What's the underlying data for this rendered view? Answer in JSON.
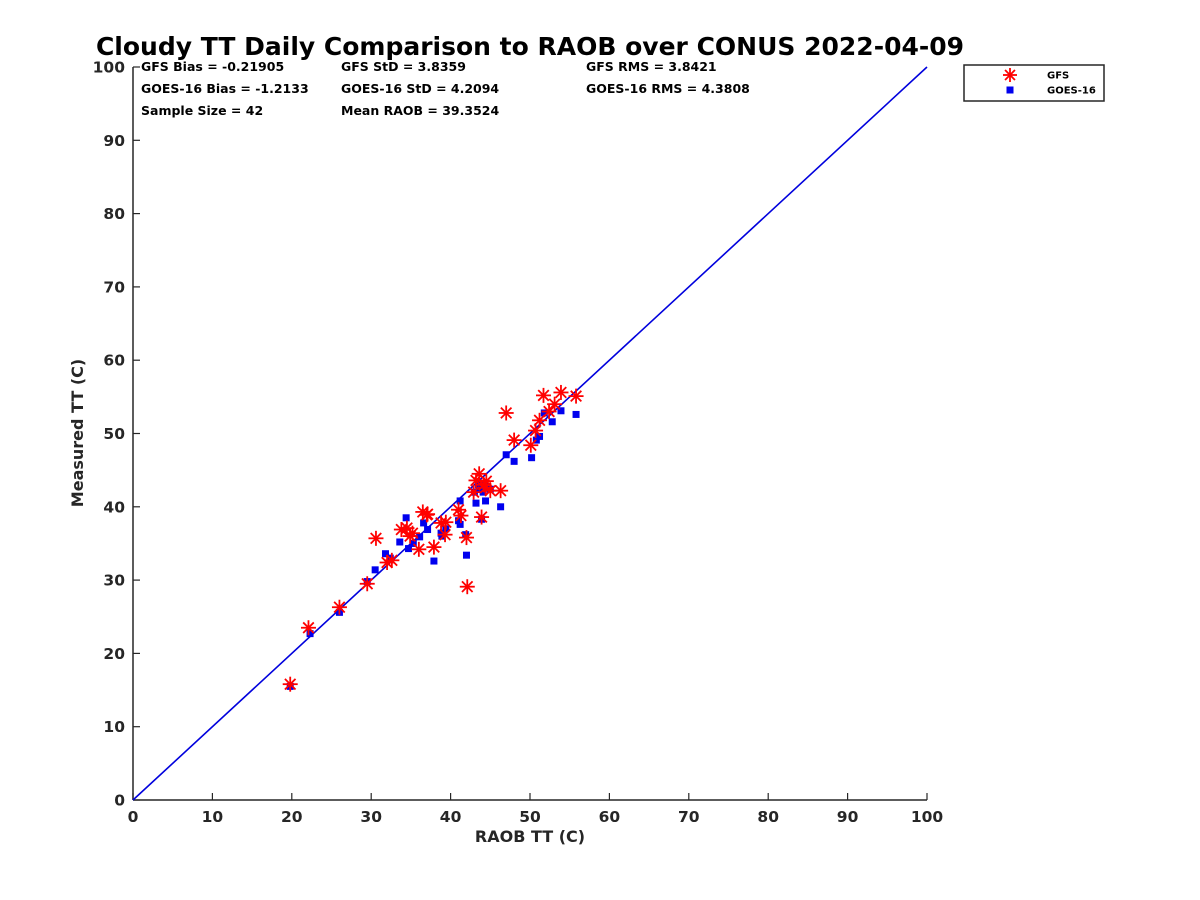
{
  "chart_data": {
    "type": "scatter",
    "title": "Cloudy TT Daily Comparison to RAOB over CONUS 2022-04-09",
    "xlabel": "RAOB TT (C)",
    "ylabel": "Measured TT (C)",
    "xlim": [
      0,
      100
    ],
    "ylim": [
      0,
      100
    ],
    "xticks": [
      "0",
      "10",
      "20",
      "30",
      "40",
      "50",
      "60",
      "70",
      "80",
      "90",
      "100"
    ],
    "yticks": [
      "0",
      "10",
      "20",
      "30",
      "40",
      "50",
      "60",
      "70",
      "80",
      "90",
      "100"
    ],
    "grid": false,
    "legend_position": "outside top-right",
    "reference_line": {
      "from": [
        0,
        0
      ],
      "to": [
        100,
        100
      ],
      "color": "#0000dd"
    },
    "stats": [
      [
        "GFS Bias = -0.21905",
        "GFS StD = 3.8359",
        "GFS RMS = 3.8421"
      ],
      [
        "GOES-16 Bias = -1.2133",
        "GOES-16 StD = 4.2094",
        "GOES-16 RMS = 4.3808"
      ],
      [
        "Sample Size = 42",
        "Mean RAOB = 39.3524",
        ""
      ]
    ],
    "series": [
      {
        "name": "GFS",
        "marker": "asterisk",
        "color": "#ff0000",
        "points": [
          [
            19.8,
            15.8
          ],
          [
            22.1,
            23.5
          ],
          [
            26.0,
            26.3
          ],
          [
            29.5,
            29.5
          ],
          [
            30.6,
            35.7
          ],
          [
            32.0,
            32.4
          ],
          [
            32.6,
            32.7
          ],
          [
            33.8,
            36.9
          ],
          [
            34.5,
            37.1
          ],
          [
            34.9,
            36.0
          ],
          [
            35.2,
            36.4
          ],
          [
            36.0,
            34.2
          ],
          [
            36.5,
            39.3
          ],
          [
            37.1,
            39.0
          ],
          [
            37.9,
            34.5
          ],
          [
            38.8,
            37.8
          ],
          [
            39.3,
            36.2
          ],
          [
            39.4,
            37.9
          ],
          [
            41.0,
            39.6
          ],
          [
            41.3,
            38.8
          ],
          [
            42.0,
            35.8
          ],
          [
            42.1,
            29.1
          ],
          [
            42.9,
            42.0
          ],
          [
            43.2,
            43.6
          ],
          [
            43.6,
            44.5
          ],
          [
            43.9,
            38.6
          ],
          [
            44.2,
            43.0
          ],
          [
            44.5,
            43.5
          ],
          [
            45.0,
            42.2
          ],
          [
            46.3,
            42.2
          ],
          [
            47.0,
            52.8
          ],
          [
            48.0,
            49.1
          ],
          [
            50.1,
            48.4
          ],
          [
            50.7,
            50.4
          ],
          [
            51.2,
            51.8
          ],
          [
            51.7,
            55.2
          ],
          [
            52.4,
            53.0
          ],
          [
            53.1,
            54.0
          ],
          [
            53.9,
            55.6
          ],
          [
            55.8,
            55.1
          ],
          [
            44.4,
            42.6
          ],
          [
            37.0,
            38.9
          ]
        ]
      },
      {
        "name": "GOES-16",
        "marker": "square",
        "color": "#0000ee",
        "points": [
          [
            19.8,
            15.5
          ],
          [
            22.3,
            22.7
          ],
          [
            26.0,
            25.6
          ],
          [
            29.5,
            29.8
          ],
          [
            30.5,
            31.4
          ],
          [
            31.8,
            33.6
          ],
          [
            32.4,
            33.0
          ],
          [
            33.6,
            35.2
          ],
          [
            34.4,
            38.5
          ],
          [
            34.7,
            34.3
          ],
          [
            35.3,
            35.0
          ],
          [
            36.1,
            35.9
          ],
          [
            36.6,
            37.8
          ],
          [
            37.1,
            36.9
          ],
          [
            37.9,
            32.6
          ],
          [
            38.9,
            36.0
          ],
          [
            39.4,
            37.0
          ],
          [
            41.0,
            38.1
          ],
          [
            41.2,
            40.8
          ],
          [
            41.9,
            36.2
          ],
          [
            42.0,
            33.4
          ],
          [
            43.0,
            42.0
          ],
          [
            43.2,
            40.5
          ],
          [
            43.5,
            43.0
          ],
          [
            43.9,
            38.3
          ],
          [
            44.3,
            43.2
          ],
          [
            44.4,
            40.8
          ],
          [
            46.3,
            40.0
          ],
          [
            47.0,
            47.1
          ],
          [
            48.0,
            46.2
          ],
          [
            50.2,
            46.7
          ],
          [
            50.8,
            49.1
          ],
          [
            51.2,
            49.6
          ],
          [
            51.8,
            52.8
          ],
          [
            52.8,
            51.6
          ],
          [
            53.9,
            53.1
          ],
          [
            55.8,
            52.6
          ],
          [
            41.2,
            37.6
          ],
          [
            44.1,
            42.0
          ],
          [
            43.6,
            42.5
          ],
          [
            38.8,
            36.4
          ],
          [
            45.0,
            42.4
          ]
        ]
      }
    ]
  },
  "legend": {
    "items": [
      {
        "label": "GFS",
        "color": "#ff0000",
        "icon": "red-asterisk"
      },
      {
        "label": "GOES-16",
        "color": "#0000ee",
        "icon": "blue-square"
      }
    ]
  }
}
